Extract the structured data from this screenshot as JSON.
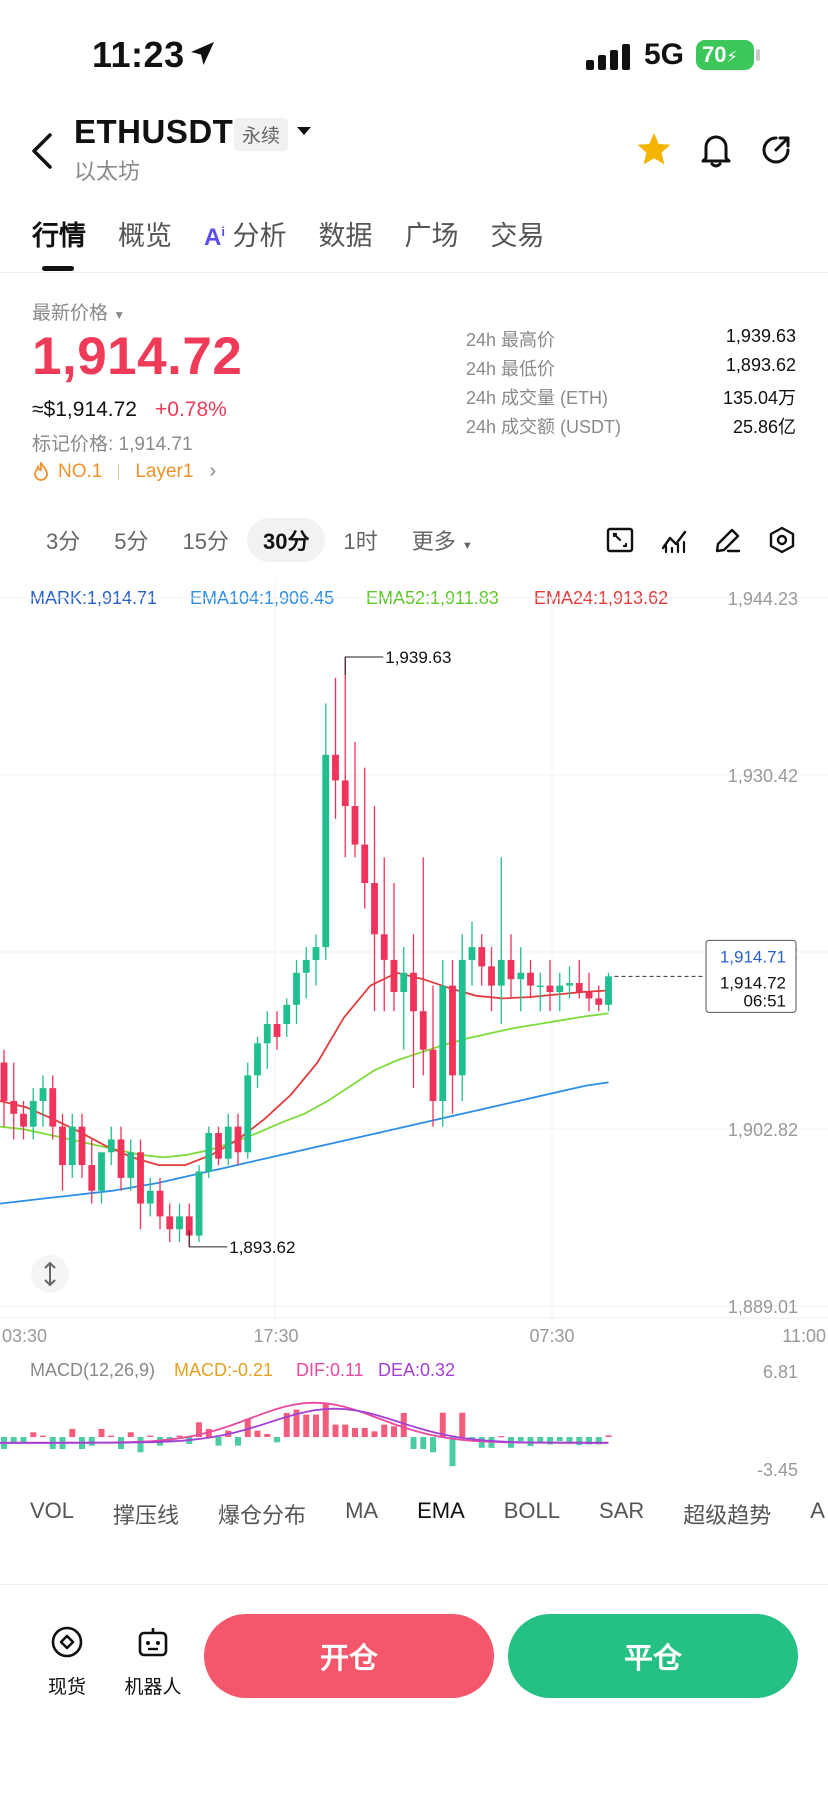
{
  "status_bar": {
    "time": "11:23",
    "network": "5G",
    "battery": "70"
  },
  "header": {
    "symbol": "ETHUSDT",
    "contract_type": "永续",
    "subtitle": "以太坊"
  },
  "tabs": [
    {
      "label": "行情"
    },
    {
      "label": "概览"
    },
    {
      "label": "分析"
    },
    {
      "label": "数据"
    },
    {
      "label": "广场"
    },
    {
      "label": "交易"
    }
  ],
  "price": {
    "label": "最新价格",
    "last": "1,914.72",
    "usd": "≈$1,914.72",
    "change": "+0.78%",
    "mark": "标记价格: 1,914.71",
    "rank": "NO.1",
    "category": "Layer1"
  },
  "stats": [
    {
      "label": "24h 最高价",
      "value": "1,939.63"
    },
    {
      "label": "24h 最低价",
      "value": "1,893.62"
    },
    {
      "label": "24h 成交量 (ETH)",
      "value": "135.04万"
    },
    {
      "label": "24h 成交额 (USDT)",
      "value": "25.86亿"
    }
  ],
  "intervals": [
    {
      "label": "3分"
    },
    {
      "label": "5分"
    },
    {
      "label": "15分"
    },
    {
      "label": "30分"
    },
    {
      "label": "1时"
    },
    {
      "label": "更多"
    }
  ],
  "chart_legend": {
    "mark": "MARK:1,914.71",
    "ema104": "EMA104:1,906.45",
    "ema52": "EMA52:1,911.83",
    "ema24": "EMA24:1,913.62"
  },
  "price_tag": {
    "mark": "1,914.71",
    "last": "1,914.72",
    "countdown": "06:51"
  },
  "macd_legend": {
    "name": "MACD(12,26,9)",
    "macd": "MACD:-0.21",
    "dif": "DIF:0.11",
    "dea": "DEA:0.32"
  },
  "indicator_tabs": [
    {
      "label": "VOL"
    },
    {
      "label": "撑压线"
    },
    {
      "label": "爆仓分布"
    },
    {
      "label": "MA"
    },
    {
      "label": "EMA"
    },
    {
      "label": "BOLL"
    },
    {
      "label": "SAR"
    },
    {
      "label": "超级趋势"
    },
    {
      "label": "A"
    }
  ],
  "bottom_bar": {
    "spot": "现货",
    "robot": "机器人",
    "open": "开仓",
    "close": "平仓"
  },
  "colors": {
    "up": "#1fbf8f",
    "down": "#f0335a",
    "ema104": "#2d8ee6",
    "ema52": "#7ddc3a",
    "ema24": "#e23b3b",
    "mark": "#2a62c9",
    "macd": "#e6a020",
    "dif": "#e84aa0",
    "dea": "#a23fd6"
  },
  "chart_data": {
    "type": "candlestick",
    "interval": "30分",
    "y_ticks": [
      "1,944.23",
      "1,930.42",
      "1,916.62",
      "1,902.82",
      "1,889.01"
    ],
    "x_ticks": [
      "03:30",
      "17:30",
      "07:30",
      "11:00"
    ],
    "ylim": [
      1889.01,
      1944.23
    ],
    "high_label": "1,939.63",
    "low_label": "1,893.62",
    "high": 1939.63,
    "low": 1893.62,
    "candles": [
      [
        1908,
        1909,
        1903,
        1905
      ],
      [
        1905,
        1908,
        1902,
        1904
      ],
      [
        1904,
        1905,
        1902,
        1903
      ],
      [
        1903,
        1906,
        1902,
        1905
      ],
      [
        1905,
        1907,
        1903,
        1906
      ],
      [
        1906,
        1907,
        1902,
        1903
      ],
      [
        1903,
        1904,
        1898,
        1900
      ],
      [
        1900,
        1904,
        1899,
        1903
      ],
      [
        1903,
        1904,
        1899,
        1900
      ],
      [
        1900,
        1902,
        1897,
        1898
      ],
      [
        1898,
        1901,
        1897,
        1901
      ],
      [
        1901,
        1903,
        1900,
        1902
      ],
      [
        1902,
        1903,
        1898,
        1899
      ],
      [
        1899,
        1902,
        1898,
        1901
      ],
      [
        1901,
        1902,
        1895,
        1897
      ],
      [
        1897,
        1899,
        1896,
        1898
      ],
      [
        1898,
        1899,
        1895,
        1896
      ],
      [
        1896,
        1897,
        1894,
        1895
      ],
      [
        1895,
        1897,
        1894,
        1896
      ],
      [
        1896,
        1897,
        1893.62,
        1894.5
      ],
      [
        1894.5,
        1900,
        1894,
        1899.5
      ],
      [
        1899.5,
        1903,
        1899,
        1902.5
      ],
      [
        1902.5,
        1903,
        1900,
        1900.5
      ],
      [
        1900.5,
        1904,
        1900,
        1903
      ],
      [
        1903,
        1904,
        1900,
        1901
      ],
      [
        1901,
        1908,
        1900.5,
        1907
      ],
      [
        1907,
        1910,
        1906,
        1909.5
      ],
      [
        1909.5,
        1912,
        1907.5,
        1911
      ],
      [
        1911,
        1912,
        1909,
        1910
      ],
      [
        1911,
        1913,
        1910,
        1912.5
      ],
      [
        1912.5,
        1916,
        1911,
        1915
      ],
      [
        1915,
        1917,
        1913,
        1916
      ],
      [
        1916,
        1918,
        1914,
        1917
      ],
      [
        1917,
        1936,
        1916,
        1932
      ],
      [
        1932,
        1938,
        1927,
        1930
      ],
      [
        1930,
        1939.63,
        1924,
        1928
      ],
      [
        1928,
        1933,
        1924,
        1925
      ],
      [
        1925,
        1931,
        1920,
        1922
      ],
      [
        1922,
        1928,
        1912,
        1918
      ],
      [
        1918,
        1924,
        1912,
        1916
      ],
      [
        1916,
        1922,
        1912,
        1913.5
      ],
      [
        1913.5,
        1917,
        1909,
        1915
      ],
      [
        1915,
        1918,
        1906,
        1912
      ],
      [
        1912,
        1924,
        1907,
        1909
      ],
      [
        1909,
        1914,
        1903,
        1905
      ],
      [
        1905,
        1916,
        1903,
        1914
      ],
      [
        1914,
        1916,
        1904,
        1907
      ],
      [
        1907,
        1918,
        1905,
        1916
      ],
      [
        1916,
        1919,
        1914,
        1917
      ],
      [
        1917,
        1918,
        1914,
        1915.5
      ],
      [
        1915.5,
        1917,
        1912,
        1914
      ],
      [
        1914,
        1924,
        1911,
        1916
      ],
      [
        1916,
        1918,
        1913,
        1914.5
      ],
      [
        1914.5,
        1917,
        1912,
        1915
      ],
      [
        1915,
        1916,
        1913,
        1914
      ],
      [
        1914,
        1915,
        1912,
        1914
      ],
      [
        1914,
        1916,
        1912,
        1913.5
      ],
      [
        1913.5,
        1915,
        1912,
        1914
      ],
      [
        1914,
        1915.5,
        1913,
        1914.2
      ],
      [
        1914.2,
        1916,
        1913,
        1913.5
      ],
      [
        1913.5,
        1915,
        1912,
        1913
      ],
      [
        1913,
        1914,
        1912,
        1912.5
      ],
      [
        1912.5,
        1915,
        1912,
        1914.72
      ]
    ],
    "ema104": [
      1897,
      1897.2,
      1897.4,
      1897.6,
      1897.8,
      1898,
      1898.3,
      1898.6,
      1899,
      1899.4,
      1899.8,
      1900.2,
      1900.6,
      1901,
      1901.4,
      1901.8,
      1902.2,
      1902.6,
      1903,
      1903.4,
      1903.8,
      1904.2,
      1904.6,
      1905,
      1905.4,
      1905.8,
      1906.2,
      1906.45
    ],
    "ema52": [
      1903,
      1902.8,
      1902.4,
      1902,
      1901.6,
      1901.2,
      1900.8,
      1900.6,
      1900.8,
      1901.2,
      1901.8,
      1902.5,
      1903.3,
      1904,
      1905,
      1906.2,
      1907.4,
      1908.2,
      1908.8,
      1909.4,
      1909.9,
      1910.3,
      1910.7,
      1911,
      1911.3,
      1911.6,
      1911.83
    ],
    "ema24": [
      1905,
      1904.5,
      1903.6,
      1902.6,
      1901.5,
      1900.6,
      1900,
      1900,
      1900.8,
      1902,
      1903.6,
      1905.5,
      1908,
      1911.5,
      1914,
      1915,
      1914.5,
      1913.8,
      1913.2,
      1913,
      1913.1,
      1913.3,
      1913.5,
      1913.62
    ],
    "macd": {
      "dif": 0.11,
      "dea": 0.32,
      "hist": -0.21,
      "ylim": [
        -3.45,
        6.81
      ]
    }
  }
}
